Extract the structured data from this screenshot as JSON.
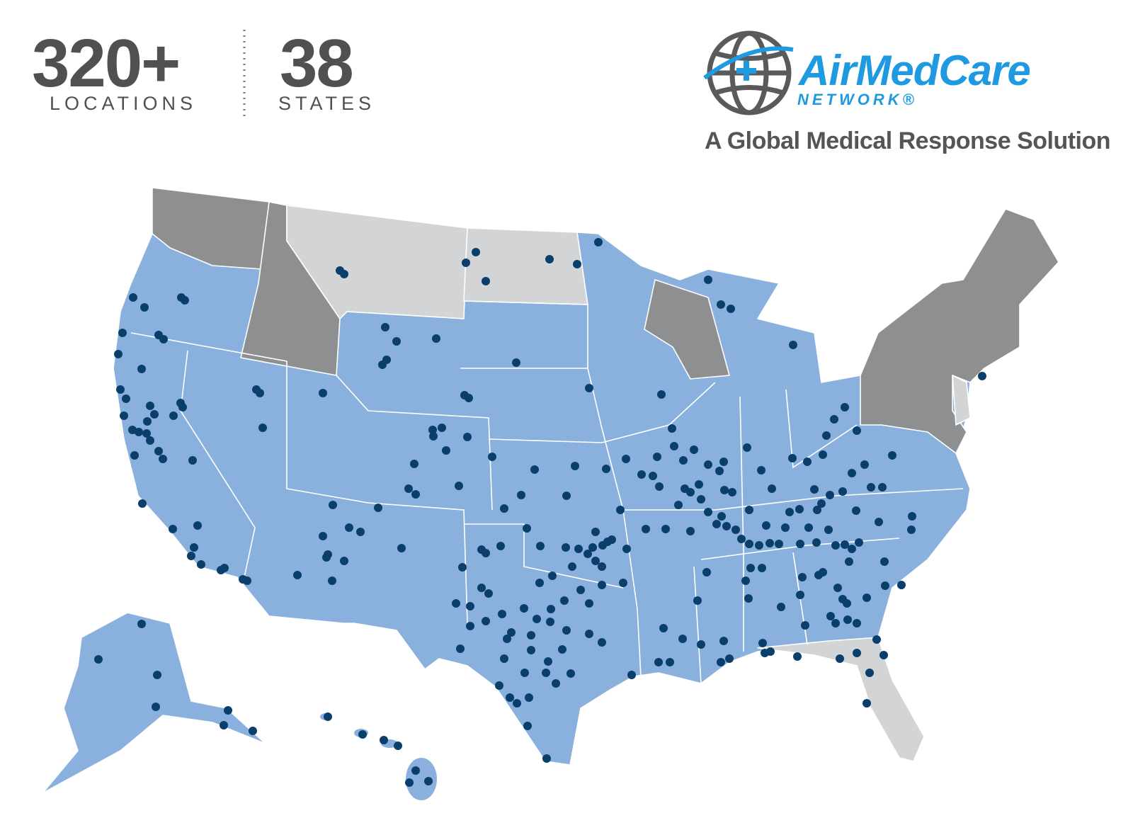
{
  "header": {
    "stats": [
      {
        "value": "320+",
        "label": "LOCATIONS"
      },
      {
        "value": "38",
        "label": "STATES"
      }
    ]
  },
  "logo": {
    "name": "AirMedCare",
    "subname": "NETWORK®",
    "tagline": "A Global Medical Response Solution"
  }
}
